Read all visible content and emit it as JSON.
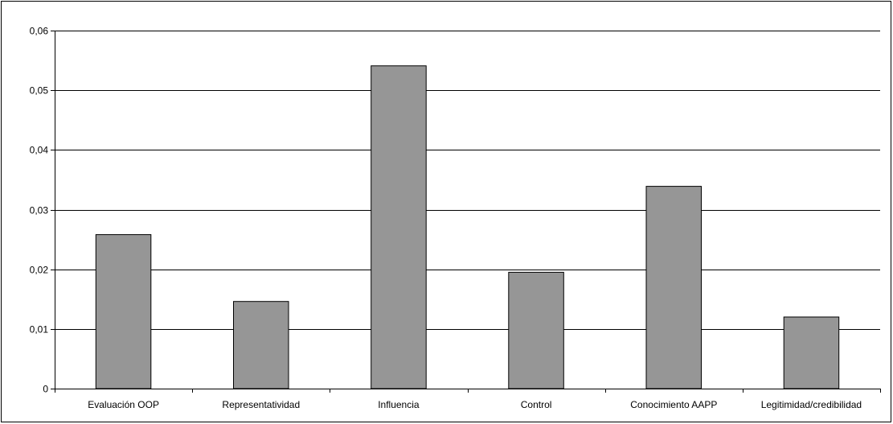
{
  "chart_data": {
    "type": "bar",
    "title": "",
    "xlabel": "",
    "ylabel": "",
    "categories": [
      "Evaluación OOP",
      "Representatividad",
      "Influencia",
      "Control",
      "Conocimiento AAPP",
      "Legitimidad/credibilidad"
    ],
    "values": [
      0.0258,
      0.0146,
      0.0541,
      0.0195,
      0.0339,
      0.012
    ],
    "ylim": [
      0,
      0.06
    ],
    "yticks": [
      0,
      0.01,
      0.02,
      0.03,
      0.04,
      0.05,
      0.06
    ],
    "ytick_labels": [
      "0",
      "0,01",
      "0,02",
      "0,03",
      "0,04",
      "0,05",
      "0,06"
    ],
    "grid": true,
    "legend": "none",
    "colors": {
      "bar_fill": "#969696",
      "bar_stroke": "#000000",
      "grid": "#000000",
      "axis": "#000000"
    }
  }
}
